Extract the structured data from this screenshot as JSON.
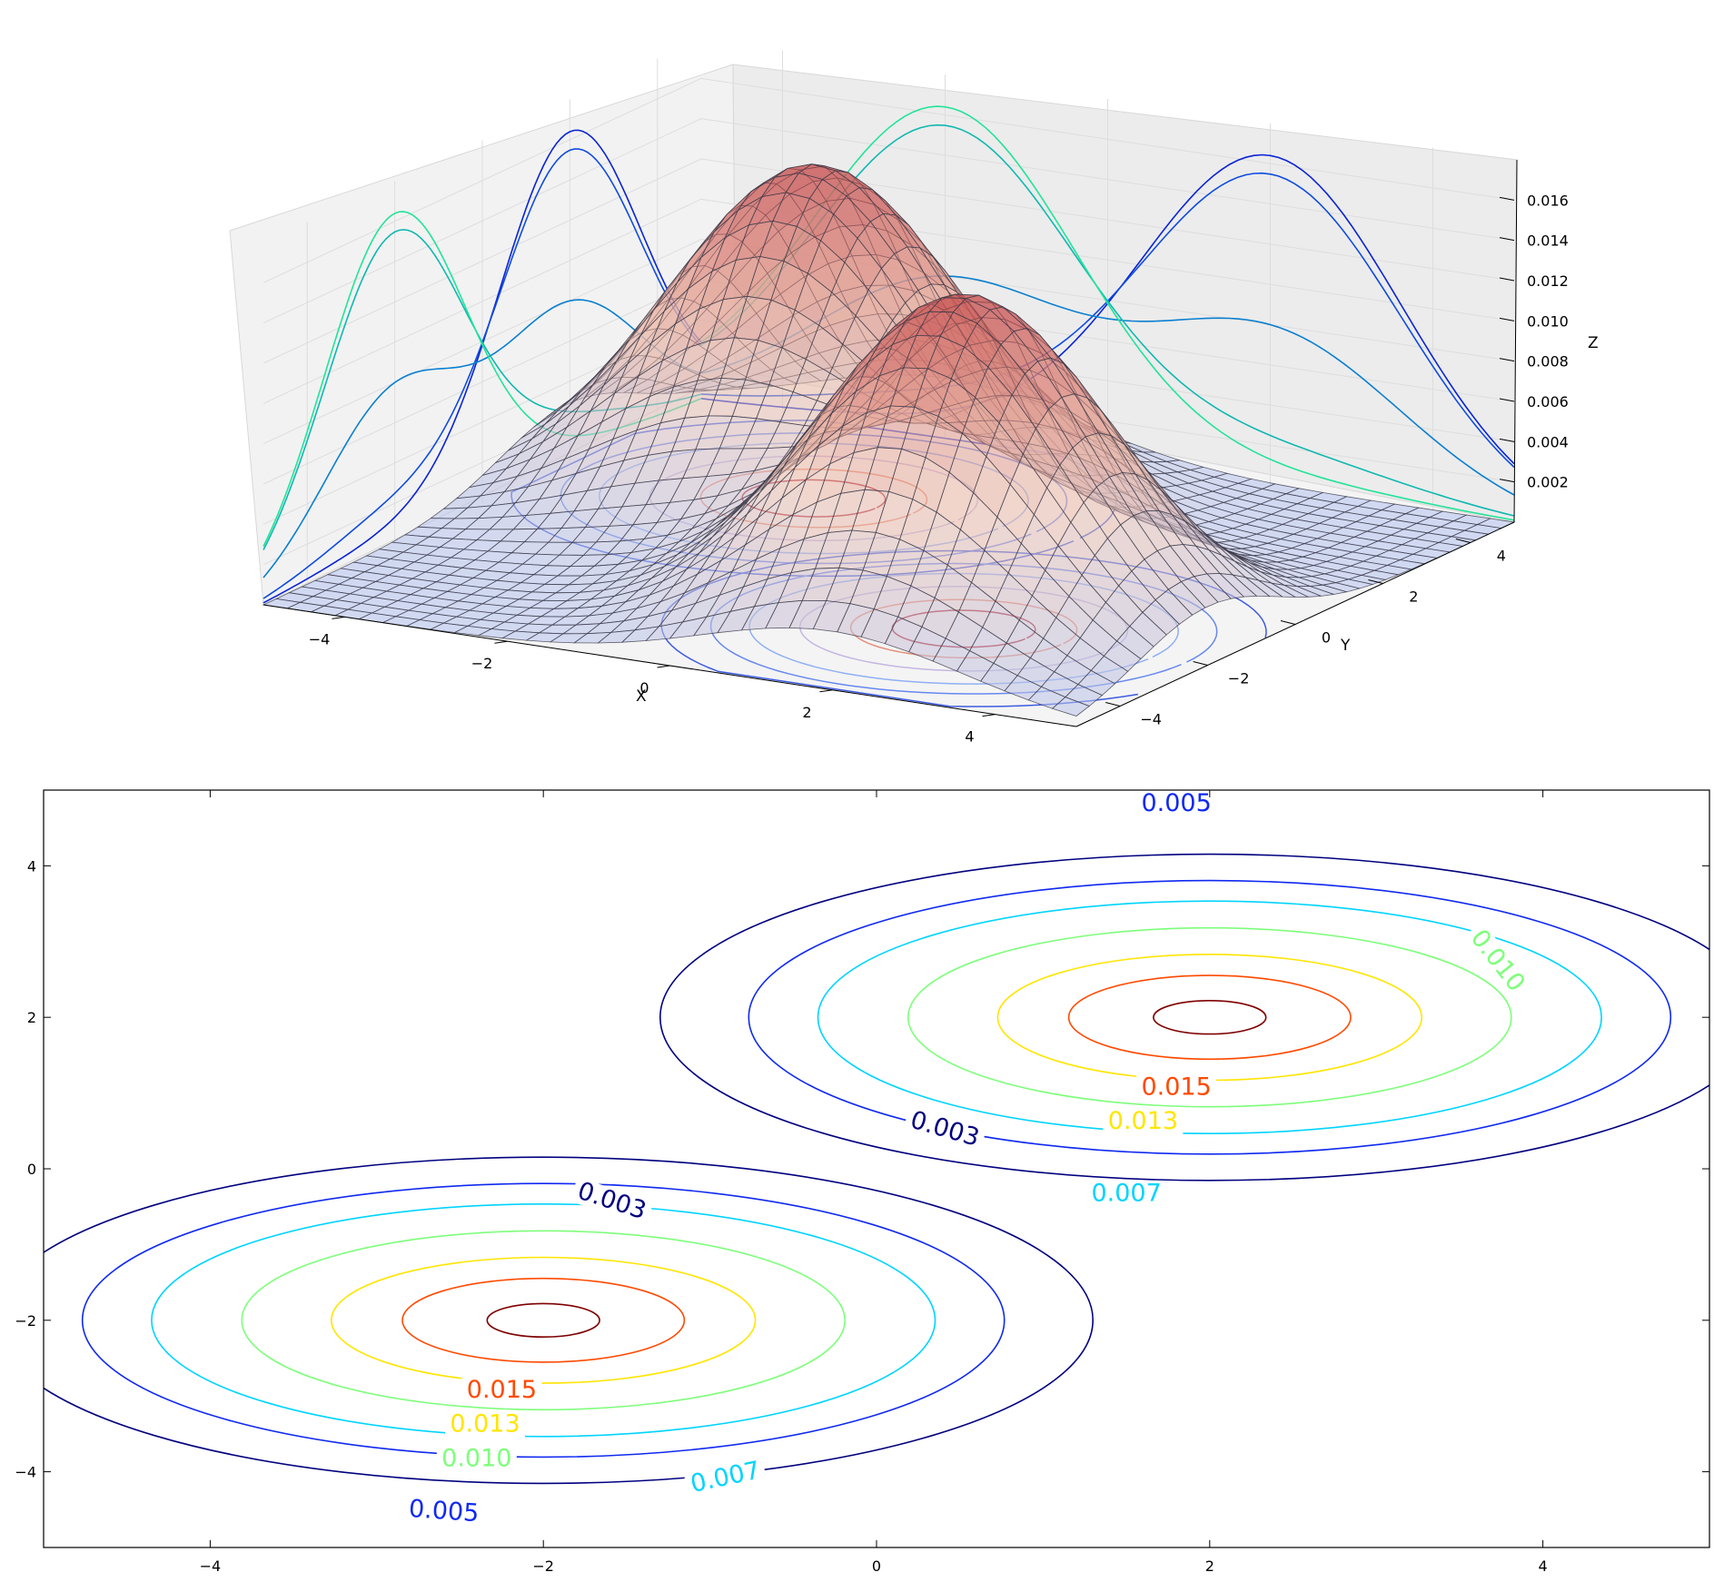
{
  "chart_data": [
    {
      "type": "surface",
      "title": "",
      "xlabel": "X",
      "ylabel": "Y",
      "zlabel": "Z",
      "xlim": [
        -5,
        5
      ],
      "ylim": [
        -5,
        5
      ],
      "zlim": [
        0,
        0.018
      ],
      "x_ticks": [
        "−4",
        "−2",
        "0",
        "2",
        "4"
      ],
      "x_tick_values": [
        -4,
        -2,
        0,
        2,
        4
      ],
      "y_ticks": [
        "−4",
        "−2",
        "0",
        "2",
        "4"
      ],
      "y_tick_values": [
        -4,
        -2,
        0,
        2,
        4
      ],
      "z_ticks": [
        "0.002",
        "0.004",
        "0.006",
        "0.008",
        "0.010",
        "0.012",
        "0.014",
        "0.016"
      ],
      "z_tick_values": [
        0.002,
        0.004,
        0.006,
        0.008,
        0.01,
        0.012,
        0.014,
        0.016
      ],
      "grid": true,
      "colormap": "coolwarm",
      "peaks": [
        {
          "x": -2,
          "y": 2,
          "z": 0.0165
        },
        {
          "x": 2,
          "y": -2,
          "z": 0.0165
        }
      ],
      "floor_contours": true,
      "wall_projections": true
    },
    {
      "type": "contour",
      "title": "",
      "xlim": [
        -5,
        5
      ],
      "ylim": [
        -5,
        5
      ],
      "x_ticks": [
        "−4",
        "−2",
        "0",
        "2",
        "4"
      ],
      "x_tick_values": [
        -4,
        -2,
        0,
        2,
        4
      ],
      "y_ticks": [
        "4",
        "2",
        "0",
        "−2",
        "−4"
      ],
      "y_tick_values": [
        4,
        2,
        0,
        -2,
        -4
      ],
      "centers": [
        {
          "x": -2,
          "y": -2
        },
        {
          "x": 2,
          "y": 2
        }
      ],
      "levels": [
        0.003,
        0.005,
        0.007,
        0.01,
        0.013,
        0.015,
        0.0165
      ],
      "level_colors": [
        "#00007f",
        "#0f29f0",
        "#00d4ff",
        "#7dff7a",
        "#ffe500",
        "#ff4a00",
        "#7f0000"
      ],
      "labels": [
        {
          "text": "0.003",
          "x": -1.6,
          "y": -0.5,
          "color": "#00007f",
          "rotation": 18
        },
        {
          "text": "0.003",
          "x": 0.4,
          "y": 0.45,
          "color": "#00007f",
          "rotation": 16
        },
        {
          "text": "0.005",
          "x": -2.6,
          "y": -4.6,
          "color": "#0f29f0",
          "rotation": 4
        },
        {
          "text": "0.005",
          "x": 1.8,
          "y": 4.75,
          "color": "#0f29f0",
          "rotation": 0
        },
        {
          "text": "0.007",
          "x": -0.9,
          "y": -4.15,
          "color": "#00d4ff",
          "rotation": -12
        },
        {
          "text": "0.007",
          "x": 1.5,
          "y": -0.4,
          "color": "#00d4ff",
          "rotation": 0
        },
        {
          "text": "0.010",
          "x": -2.4,
          "y": -3.9,
          "color": "#7dff7a",
          "rotation": 0
        },
        {
          "text": "0.010",
          "x": 3.7,
          "y": 2.7,
          "color": "#7dff7a",
          "rotation": 52
        },
        {
          "text": "0.013",
          "x": -2.35,
          "y": -3.45,
          "color": "#ffe500",
          "rotation": 0
        },
        {
          "text": "0.013",
          "x": 1.6,
          "y": 0.55,
          "color": "#ffe500",
          "rotation": 0
        },
        {
          "text": "0.015",
          "x": -2.25,
          "y": -3.0,
          "color": "#ff4a00",
          "rotation": 0
        },
        {
          "text": "0.015",
          "x": 1.8,
          "y": 1.0,
          "color": "#ff4a00",
          "rotation": 0
        }
      ]
    }
  ]
}
